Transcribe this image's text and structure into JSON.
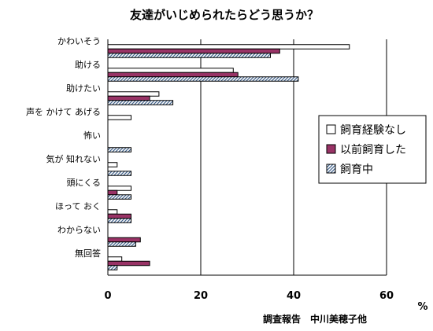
{
  "chart_data": {
    "type": "bar",
    "orientation": "horizontal",
    "title": "友達がいじめられたらどう思うか？",
    "xlabel": "%",
    "xlim": [
      0,
      60
    ],
    "xticks": [
      "0",
      "20",
      "40",
      "60"
    ],
    "grid": true,
    "legend_position": "right",
    "categories": [
      "かわいそう",
      "助ける",
      "助けたい",
      "声を かけて あげる",
      "怖い",
      "気が 知れない",
      "頭にくる",
      "ほって おく",
      "わからない",
      "無回答"
    ],
    "series": [
      {
        "name": "飼育経験なし",
        "pattern": "white",
        "values": [
          52,
          27,
          11,
          5,
          0,
          2,
          5,
          2,
          0,
          3
        ]
      },
      {
        "name": "以前飼育した",
        "pattern": "maroon",
        "values": [
          37,
          28,
          9,
          0,
          0,
          0,
          2,
          5,
          7,
          9
        ]
      },
      {
        "name": "飼育中",
        "pattern": "hatched",
        "values": [
          35,
          41,
          14,
          0,
          5,
          5,
          5,
          5,
          6,
          2
        ]
      }
    ]
  },
  "source_note": "調査報告　中川美穂子他",
  "colors": {
    "maroon": "#993366",
    "hatch_line": "#3d5f8a",
    "hatch_bg": "#ffffff",
    "outline": "#000000",
    "grid": "#000000"
  }
}
